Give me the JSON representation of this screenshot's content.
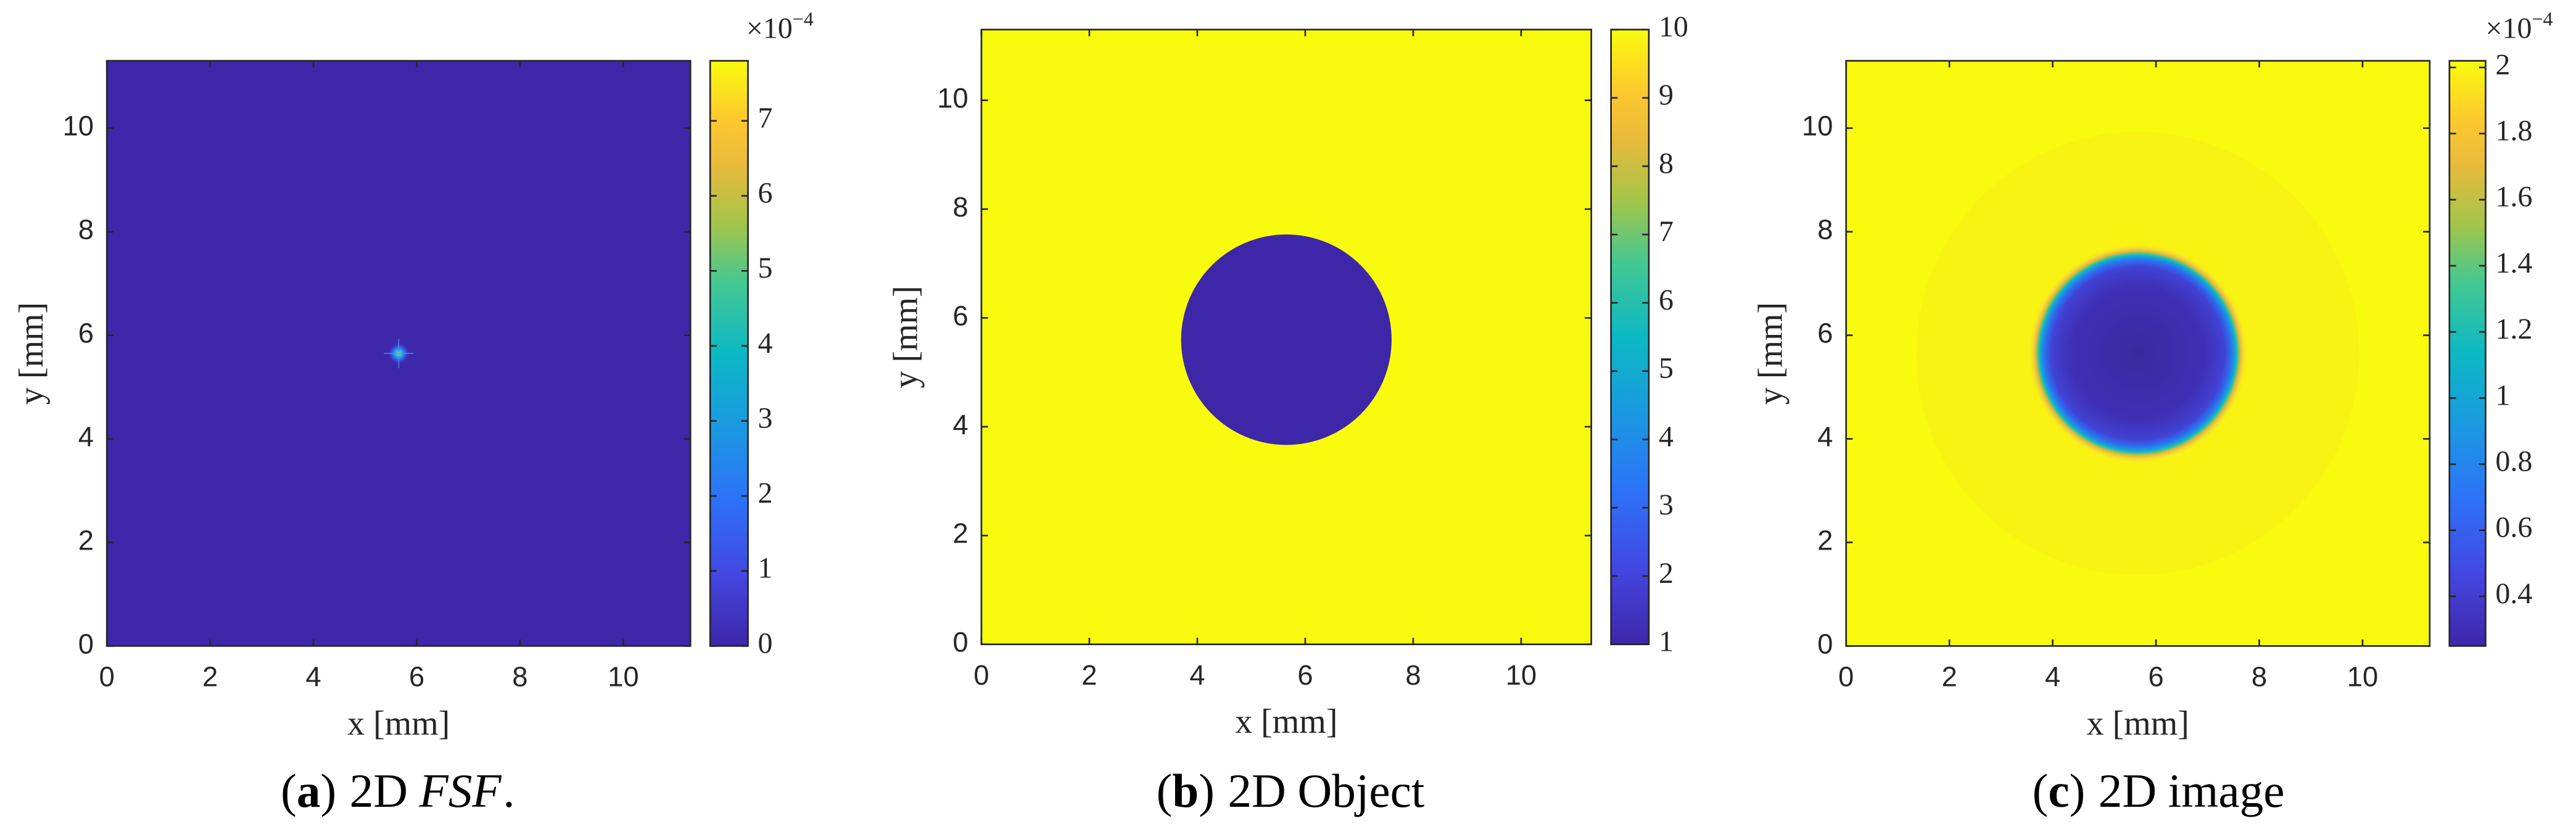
{
  "chart_data": [
    {
      "type": "heatmap",
      "xlabel": "x [mm]",
      "ylabel": "y [mm]",
      "xlim": [
        0,
        11.3
      ],
      "ylim": [
        0,
        11.3
      ],
      "xticks": [
        0,
        2,
        4,
        6,
        8,
        10
      ],
      "yticks": [
        0,
        2,
        4,
        6,
        8,
        10
      ],
      "clim": [
        0,
        7.8
      ],
      "cticks": [
        0,
        1,
        2,
        3,
        4,
        5,
        6,
        7
      ],
      "colorbar_multiplier": {
        "base": "×10",
        "exponent": "−4"
      },
      "background": 0,
      "peak": {
        "x": 5.65,
        "y": 5.65,
        "value": 7.8
      },
      "caption_tag": "a",
      "caption": [
        {
          "text": "2D"
        },
        {
          "text": "FSF",
          "italic": true
        },
        {
          "text": "."
        }
      ]
    },
    {
      "type": "heatmap",
      "xlabel": "x [mm]",
      "ylabel": "y [mm]",
      "xlim": [
        0,
        11.3
      ],
      "ylim": [
        0,
        11.3
      ],
      "xticks": [
        0,
        2,
        4,
        6,
        8,
        10
      ],
      "yticks": [
        0,
        2,
        4,
        6,
        8,
        10
      ],
      "clim": [
        1,
        10
      ],
      "cticks": [
        1,
        2,
        3,
        4,
        5,
        6,
        7,
        8,
        9,
        10
      ],
      "background": 10,
      "disk": {
        "x": 5.65,
        "y": 5.6,
        "radius": 1.95,
        "value": 1,
        "blur": false
      },
      "caption_tag": "b",
      "caption": [
        {
          "text": "2D"
        },
        {
          "text": "Object"
        }
      ]
    },
    {
      "type": "heatmap",
      "xlabel": "x [mm]",
      "ylabel": "y [mm]",
      "xlim": [
        0,
        11.3
      ],
      "ylim": [
        0,
        11.3
      ],
      "xticks": [
        0,
        2,
        4,
        6,
        8,
        10
      ],
      "yticks": [
        0,
        2,
        4,
        6,
        8,
        10
      ],
      "clim": [
        0.25,
        2.02
      ],
      "cticks": [
        0.4,
        0.6,
        0.8,
        1,
        1.2,
        1.4,
        1.6,
        1.8,
        2
      ],
      "colorbar_multiplier": {
        "base": "×10",
        "exponent": "−4"
      },
      "background": 2.02,
      "disk": {
        "x": 5.65,
        "y": 5.65,
        "radius": 1.95,
        "value": 0.25,
        "blur": true
      },
      "caption_tag": "c",
      "caption": [
        {
          "text": "2D"
        },
        {
          "text": "image"
        }
      ]
    }
  ]
}
